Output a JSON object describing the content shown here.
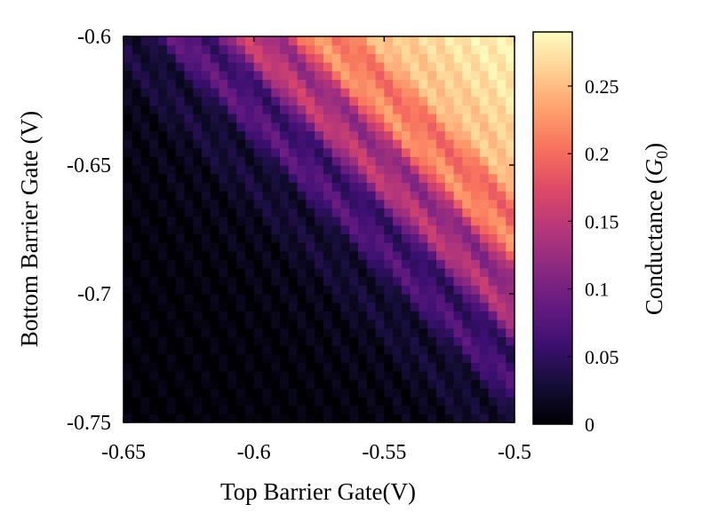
{
  "chart_data": {
    "type": "heatmap",
    "title": "",
    "xlabel": "Top Barrier Gate(V)",
    "ylabel": "Bottom Barrier Gate (V)",
    "xlim": [
      -0.65,
      -0.5
    ],
    "ylim": [
      -0.75,
      -0.6
    ],
    "x_ticks": [
      -0.65,
      -0.6,
      -0.55,
      -0.5
    ],
    "y_ticks": [
      -0.6,
      -0.65,
      -0.7,
      -0.75
    ],
    "x_tick_labels": [
      "-0.65",
      "-0.6",
      "-0.55",
      "-0.5"
    ],
    "y_tick_labels": [
      "-0.6",
      "-0.65",
      "-0.7",
      "-0.75"
    ],
    "grid": false,
    "colormap": "magma",
    "colorbar": {
      "label": "Conductance (G0)",
      "label_main": "Conductance (",
      "label_symbol": "G",
      "label_subscript": "0",
      "label_close": ")",
      "range": [
        0,
        0.29
      ],
      "ticks": [
        0,
        0.05,
        0.1,
        0.15,
        0.2,
        0.25
      ],
      "tick_labels": [
        "0",
        "0.05",
        "0.1",
        "0.15",
        "0.2",
        "0.25"
      ]
    },
    "grid_size": [
      45,
      45
    ],
    "description_of_values": {
      "max_conductance_near": [
        -0.5,
        -0.6
      ],
      "max_value": 0.29,
      "min_value": 0,
      "low_conductance_region": "bottom-left",
      "oscillation_stripes": "diagonal, ~6 stripes running from upper-left to lower-right"
    }
  }
}
